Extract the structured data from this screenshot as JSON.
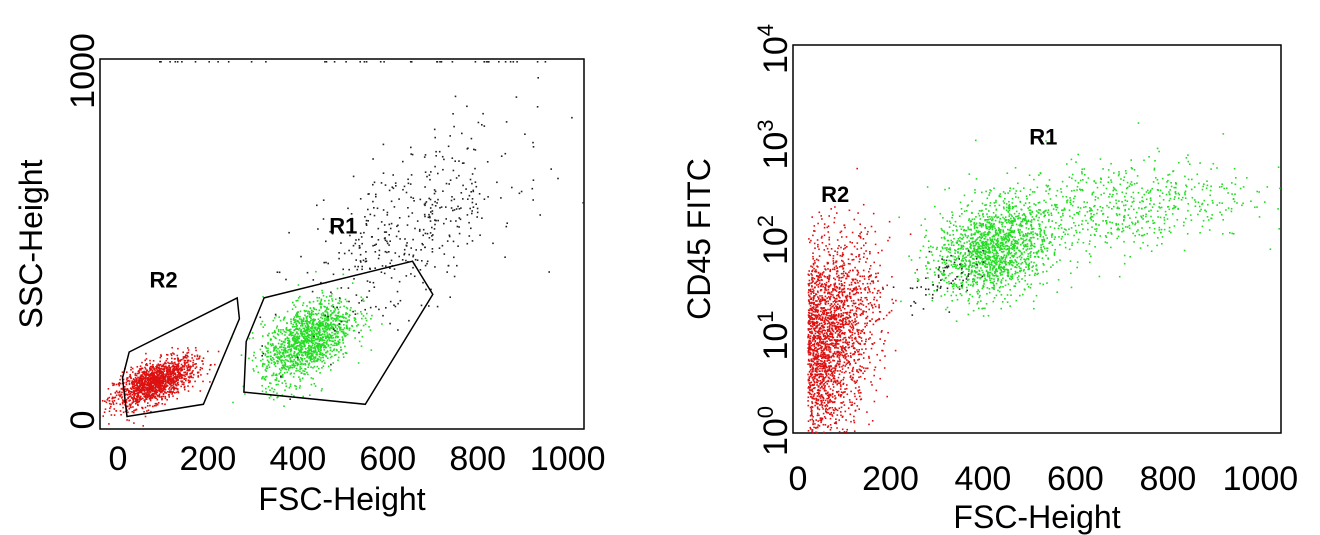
{
  "colors": {
    "r1": "#22dd22",
    "r2": "#dd1111",
    "ungated": "#222222",
    "frame": "#000000",
    "gate": "#000000"
  },
  "chart_data": [
    {
      "type": "scatter",
      "xlabel": "FSC-Height",
      "ylabel": "SSC-Height",
      "xlim": [
        0,
        1023
      ],
      "ylim": [
        0,
        1023
      ],
      "x_ticks": [
        {
          "value": 0,
          "label": "0"
        },
        {
          "value": 200,
          "label": "200"
        },
        {
          "value": 400,
          "label": "400"
        },
        {
          "value": 600,
          "label": "600"
        },
        {
          "value": 800,
          "label": "800"
        },
        {
          "value": 1000,
          "label": "1000"
        }
      ],
      "y_ticks": [
        {
          "value": 0,
          "label": "0"
        },
        {
          "value": 1000,
          "label": "1000"
        }
      ],
      "gates": [
        {
          "name": "R2",
          "label": "R2",
          "label_at": [
            70,
            380
          ],
          "polygon": [
            [
              25,
              195
            ],
            [
              265,
              350
            ],
            [
              270,
              290
            ],
            [
              190,
              45
            ],
            [
              20,
              10
            ],
            [
              10,
              120
            ]
          ]
        },
        {
          "name": "R1",
          "label": "R1",
          "label_at": [
            470,
            535
          ],
          "polygon": [
            [
              325,
              350
            ],
            [
              655,
              455
            ],
            [
              700,
              360
            ],
            [
              550,
              45
            ],
            [
              280,
              80
            ],
            [
              285,
              225
            ]
          ]
        }
      ],
      "populations": [
        {
          "name": "R2",
          "color_key": "r2",
          "count": 1500,
          "cx": 80,
          "cy": 110,
          "sx": 45,
          "sy": 35,
          "rho": 0.6
        },
        {
          "name": "R1",
          "color_key": "r1",
          "count": 1400,
          "cx": 420,
          "cy": 230,
          "sx": 50,
          "sy": 60,
          "rho": 0.5
        },
        {
          "name": "ungated",
          "color_key": "ungated",
          "count": 450,
          "cx": 650,
          "cy": 550,
          "sx": 120,
          "sy": 140,
          "rho": 0.6
        }
      ]
    },
    {
      "type": "scatter",
      "xlabel": "FSC-Height",
      "ylabel": "CD45 FITC",
      "yscale": "log",
      "xlim": [
        0,
        1023
      ],
      "ylim": [
        1,
        10000
      ],
      "x_ticks": [
        {
          "value": 0,
          "label": "0"
        },
        {
          "value": 200,
          "label": "200"
        },
        {
          "value": 400,
          "label": "400"
        },
        {
          "value": 600,
          "label": "600"
        },
        {
          "value": 800,
          "label": "800"
        },
        {
          "value": 1000,
          "label": "1000"
        }
      ],
      "y_ticks": [
        {
          "value": 1,
          "base": "10",
          "exp": "0"
        },
        {
          "value": 10,
          "base": "10",
          "exp": "1"
        },
        {
          "value": 100,
          "base": "10",
          "exp": "2"
        },
        {
          "value": 1000,
          "base": "10",
          "exp": "3"
        },
        {
          "value": 10000,
          "base": "10",
          "exp": "4"
        }
      ],
      "region_labels": [
        {
          "label": "R2",
          "at": [
            50,
            250
          ]
        },
        {
          "label": "R1",
          "at": [
            500,
            1000
          ]
        }
      ],
      "populations": [
        {
          "name": "R2",
          "color_key": "r2",
          "count": 2200,
          "cx": 60,
          "cy_log": 1.0,
          "sx": 55,
          "sy_log": 0.5,
          "rho": 0.3
        },
        {
          "name": "R1",
          "color_key": "r1",
          "count": 1500,
          "cx": 420,
          "cy_log": 1.9,
          "sx": 60,
          "sy_log": 0.25,
          "rho": 0.2
        },
        {
          "name": "R1-tail",
          "color_key": "r1",
          "count": 700,
          "cx": 680,
          "cy_log": 2.35,
          "sx": 150,
          "sy_log": 0.25,
          "rho": 0.3
        },
        {
          "name": "ungated",
          "color_key": "ungated",
          "count": 60,
          "cx": 300,
          "cy_log": 1.6,
          "sx": 40,
          "sy_log": 0.15,
          "rho": 0.5
        }
      ]
    }
  ]
}
